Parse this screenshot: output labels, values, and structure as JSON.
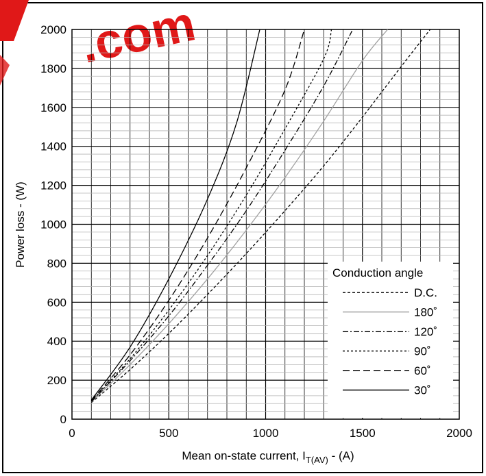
{
  "watermark": {
    "text": ".com",
    "color": "#e01818"
  },
  "chart_data": {
    "type": "line",
    "xlabel": "Mean on-state current, I",
    "xlabel_sub": "T(AV)",
    "xlabel_unit": " - (A)",
    "ylabel": "Power loss - (W)",
    "xlim": [
      0,
      2000
    ],
    "ylim": [
      0,
      2000
    ],
    "x_ticks": [
      0,
      500,
      1000,
      1500,
      2000
    ],
    "x_tick_labels": [
      "0",
      "500",
      "1000",
      "1500",
      "2000"
    ],
    "y_ticks": [
      0,
      200,
      400,
      600,
      800,
      1000,
      1200,
      1400,
      1600,
      1800,
      2000
    ],
    "y_tick_labels": [
      "0",
      "200",
      "400",
      "600",
      "800",
      "1000",
      "1200",
      "1400",
      "1600",
      "1800",
      "2000"
    ],
    "grid": true,
    "legend": {
      "title": "Conduction angle",
      "position": "bottom-right",
      "entries": [
        "D.C.",
        "180˚",
        "120˚",
        "90˚",
        "60˚",
        "30˚"
      ]
    },
    "series": [
      {
        "name": "D.C.",
        "dash": "4,3",
        "color": "#000000",
        "x": [
          100,
          300,
          500,
          700,
          900,
          1100,
          1300,
          1500,
          1700,
          1850
        ],
        "y": [
          85,
          255,
          440,
          640,
          850,
          1070,
          1300,
          1550,
          1810,
          2000
        ]
      },
      {
        "name": "180˚",
        "dash": "",
        "color": "#a0a0a0",
        "x": [
          100,
          300,
          500,
          700,
          900,
          1100,
          1300,
          1500,
          1630
        ],
        "y": [
          88,
          280,
          490,
          720,
          970,
          1240,
          1530,
          1840,
          2000
        ]
      },
      {
        "name": "120˚",
        "dash": "8,3,2,3",
        "color": "#000000",
        "x": [
          100,
          300,
          500,
          700,
          900,
          1100,
          1300,
          1450
        ],
        "y": [
          90,
          300,
          530,
          790,
          1070,
          1380,
          1710,
          2000
        ]
      },
      {
        "name": "90˚",
        "dash": "3,3",
        "color": "#000000",
        "x": [
          100,
          300,
          500,
          700,
          900,
          1100,
          1300,
          1340
        ],
        "y": [
          92,
          310,
          560,
          840,
          1150,
          1490,
          1850,
          2000
        ]
      },
      {
        "name": "60˚",
        "dash": "10,5",
        "color": "#000000",
        "x": [
          100,
          300,
          500,
          700,
          900,
          1100,
          1200
        ],
        "y": [
          95,
          330,
          610,
          930,
          1290,
          1690,
          2000
        ]
      },
      {
        "name": "30˚",
        "dash": "",
        "color": "#000000",
        "x": [
          100,
          300,
          500,
          700,
          850,
          970
        ],
        "y": [
          98,
          370,
          720,
          1130,
          1520,
          2000
        ]
      }
    ]
  }
}
